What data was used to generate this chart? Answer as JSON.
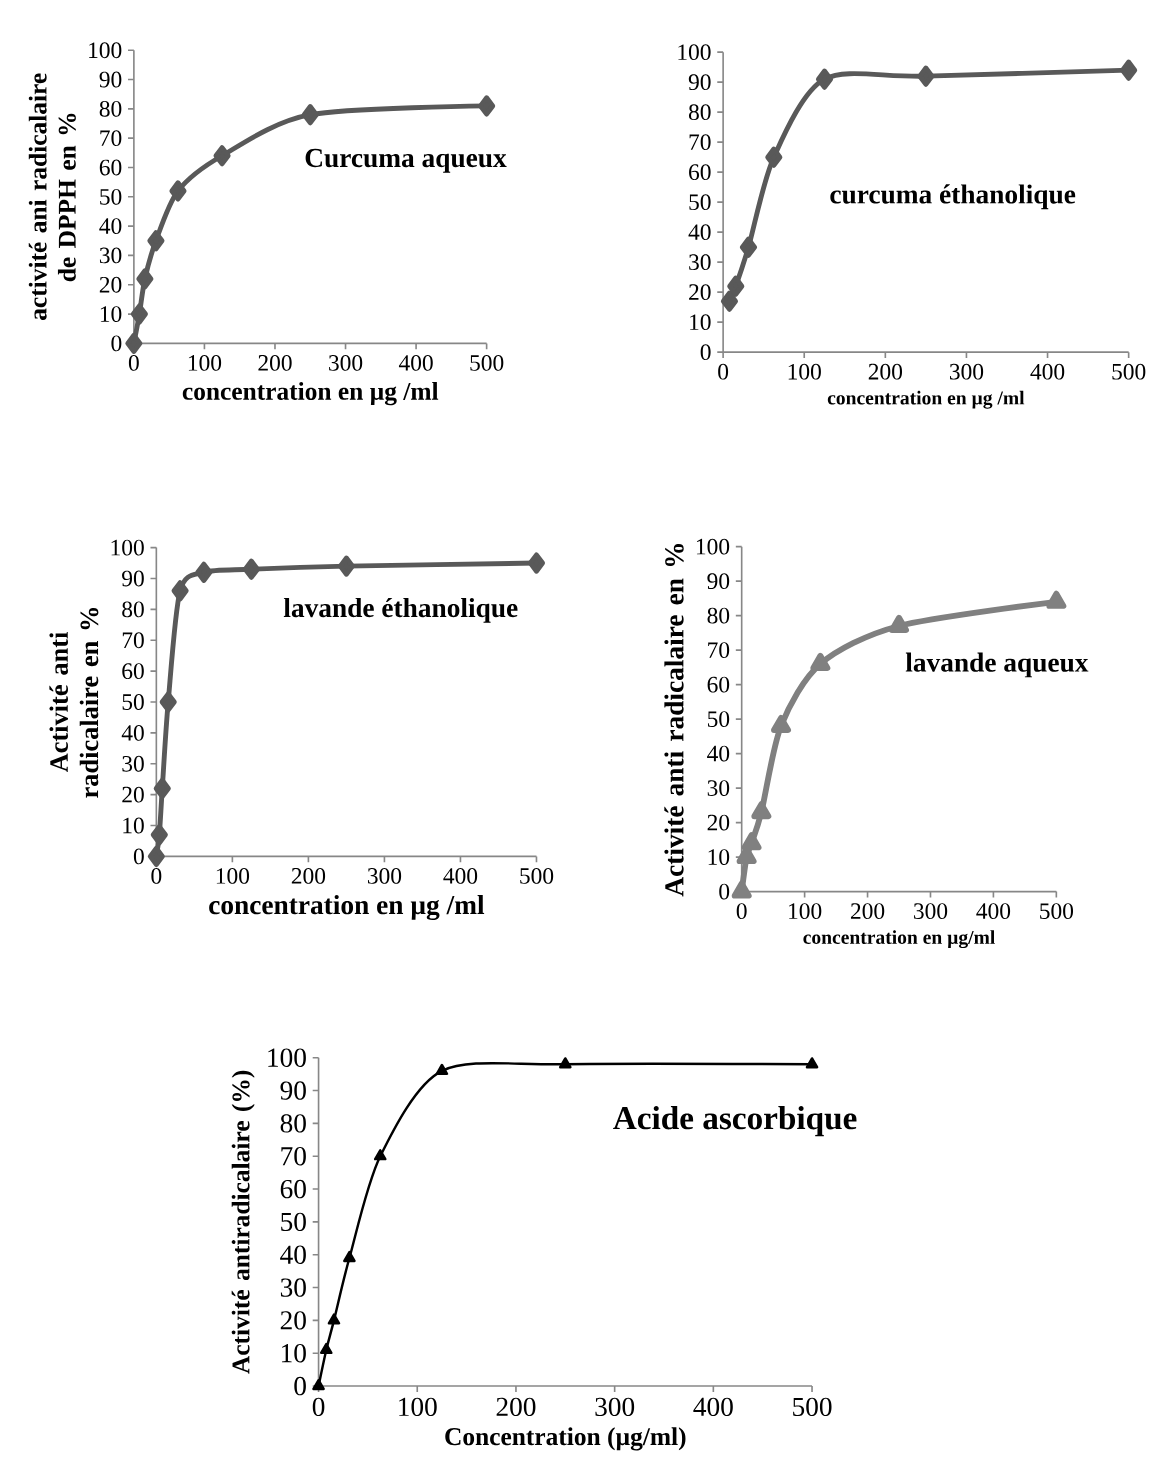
{
  "chart_data": [
    {
      "type": "line",
      "ylabel": "activité ani radicalaire de DPPH en %",
      "xlabel": "concentration en µg /ml",
      "annotations": [
        "Curcuma aqueux"
      ],
      "marker": "diamond",
      "color": "#595959",
      "x": [
        0,
        7.8,
        15.6,
        31.25,
        62.5,
        125,
        250,
        500
      ],
      "values": [
        0,
        10,
        22,
        35,
        52,
        64,
        78,
        81
      ],
      "xlim": [
        0,
        500
      ],
      "ylim": [
        0,
        100
      ],
      "xticks": [
        0,
        100,
        200,
        300,
        400,
        500
      ],
      "yticks": [
        0,
        10,
        20,
        30,
        40,
        50,
        60,
        70,
        80,
        90,
        100
      ]
    },
    {
      "type": "line",
      "xlabel": "concentration en µg /ml",
      "annotations": [
        "curcuma éthanolique"
      ],
      "marker": "diamond",
      "color": "#595959",
      "x": [
        7.8,
        15.6,
        31.25,
        62.5,
        125,
        250,
        500
      ],
      "values": [
        17,
        22,
        35,
        65,
        91,
        92,
        94
      ],
      "xlim": [
        0,
        500
      ],
      "ylim": [
        0,
        100
      ],
      "xticks": [
        0,
        100,
        200,
        300,
        400,
        500
      ],
      "yticks": [
        0,
        10,
        20,
        30,
        40,
        50,
        60,
        70,
        80,
        90,
        100
      ]
    },
    {
      "type": "line",
      "ylabel": "Activité anti radicalaire en %",
      "xlabel": "concentration en µg /ml",
      "annotations": [
        "lavande éthanolique"
      ],
      "marker": "diamond",
      "color": "#595959",
      "x": [
        0,
        3.9,
        7.8,
        15.6,
        31.25,
        62.5,
        125,
        250,
        500
      ],
      "values": [
        0,
        7,
        22,
        50,
        86,
        92,
        93,
        94,
        95
      ],
      "xlim": [
        0,
        500
      ],
      "ylim": [
        0,
        100
      ],
      "xticks": [
        0,
        100,
        200,
        300,
        400,
        500
      ],
      "yticks": [
        0,
        10,
        20,
        30,
        40,
        50,
        60,
        70,
        80,
        90,
        100
      ]
    },
    {
      "type": "line",
      "ylabel": "Activité anti radicalaire en %",
      "xlabel": "concentration en µg/ml",
      "annotations": [
        "lavande aqueux"
      ],
      "marker": "triangle",
      "color": "#808080",
      "x": [
        0,
        7.8,
        15.6,
        31.25,
        62.5,
        125,
        250,
        500
      ],
      "values": [
        0,
        10,
        14,
        23,
        48,
        66,
        77,
        84
      ],
      "xlim": [
        0,
        500
      ],
      "ylim": [
        0,
        100
      ],
      "xticks": [
        0,
        100,
        200,
        300,
        400,
        500
      ],
      "yticks": [
        0,
        10,
        20,
        30,
        40,
        50,
        60,
        70,
        80,
        90,
        100
      ]
    },
    {
      "type": "line",
      "ylabel": "Activité antiradicalaire (%)",
      "xlabel": "Concentration (µg/ml)",
      "annotations": [
        "Acide ascorbique"
      ],
      "marker": "triangle",
      "color": "#000000",
      "x": [
        0,
        7.8,
        15.6,
        31.25,
        62.5,
        125,
        250,
        500
      ],
      "values": [
        0,
        11,
        20,
        39,
        70,
        96,
        98,
        98
      ],
      "xlim": [
        0,
        500
      ],
      "ylim": [
        0,
        100
      ],
      "xticks": [
        0,
        100,
        200,
        300,
        400,
        500
      ],
      "yticks": [
        0,
        10,
        20,
        30,
        40,
        50,
        60,
        70,
        80,
        90,
        100
      ]
    }
  ]
}
